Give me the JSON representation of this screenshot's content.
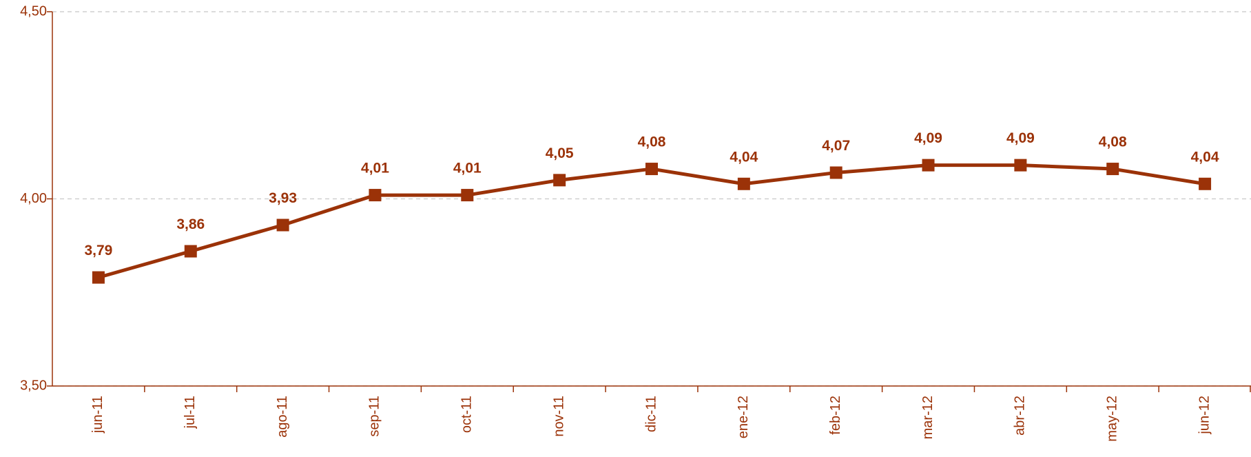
{
  "chart_data": {
    "type": "line",
    "categories": [
      "jun-11",
      "jul-11",
      "ago-11",
      "sep-11",
      "oct-11",
      "nov-11",
      "dic-11",
      "ene-12",
      "feb-12",
      "mar-12",
      "abr-12",
      "may-12",
      "jun-12"
    ],
    "values": [
      3.79,
      3.86,
      3.93,
      4.01,
      4.01,
      4.05,
      4.08,
      4.04,
      4.07,
      4.09,
      4.09,
      4.08,
      4.04
    ],
    "value_labels": [
      "3,79",
      "3,86",
      "3,93",
      "4,01",
      "4,01",
      "4,05",
      "4,08",
      "4,04",
      "4,07",
      "4,09",
      "4,09",
      "4,08",
      "4,04"
    ],
    "color": "#9b3208",
    "ylim": [
      3.5,
      4.5
    ],
    "yticks": [
      {
        "value": 3.5,
        "label": "3,50"
      },
      {
        "value": 4.0,
        "label": "4,00"
      },
      {
        "value": 4.5,
        "label": "4,50"
      }
    ],
    "grid": true
  }
}
